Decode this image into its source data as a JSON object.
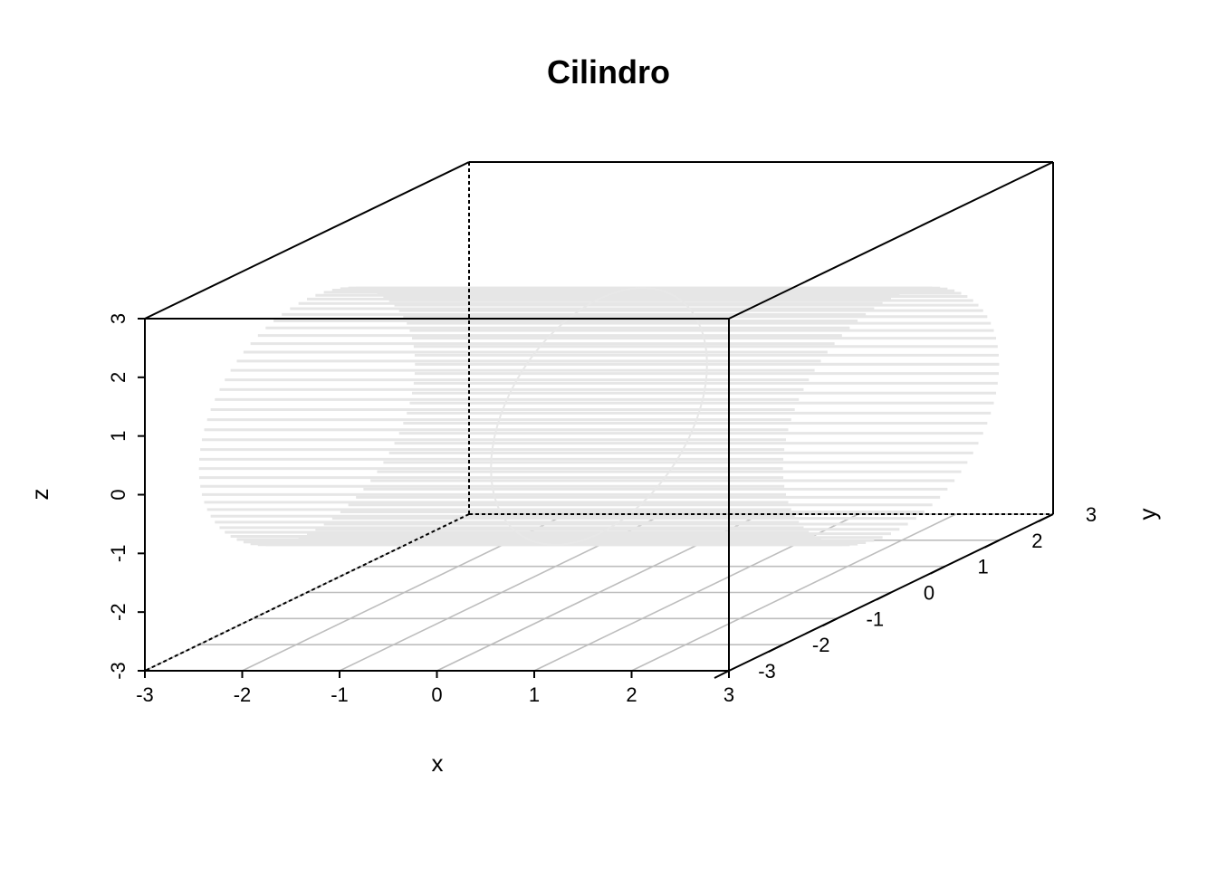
{
  "chart_data": {
    "type": "surface3d",
    "title": "Cilindro",
    "xlabel": "x",
    "ylabel": "y",
    "zlabel": "z",
    "xlim": [
      -3,
      3
    ],
    "ylim": [
      -3,
      3
    ],
    "zlim": [
      -3,
      3
    ],
    "x_ticks": [
      "-3",
      "-2",
      "-1",
      "0",
      "1",
      "2",
      "3"
    ],
    "y_ticks": [
      "-3",
      "-2",
      "-1",
      "0",
      "1",
      "2",
      "3"
    ],
    "z_ticks": [
      "-3",
      "-2",
      "-1",
      "0",
      "1",
      "2",
      "3"
    ],
    "surface": {
      "shape": "cylinder",
      "axis": "x",
      "radius": 2,
      "x_range": [
        -3,
        3
      ],
      "color": "#e6e6e6"
    },
    "grid": true,
    "grid_color": "#bdbdbd"
  }
}
